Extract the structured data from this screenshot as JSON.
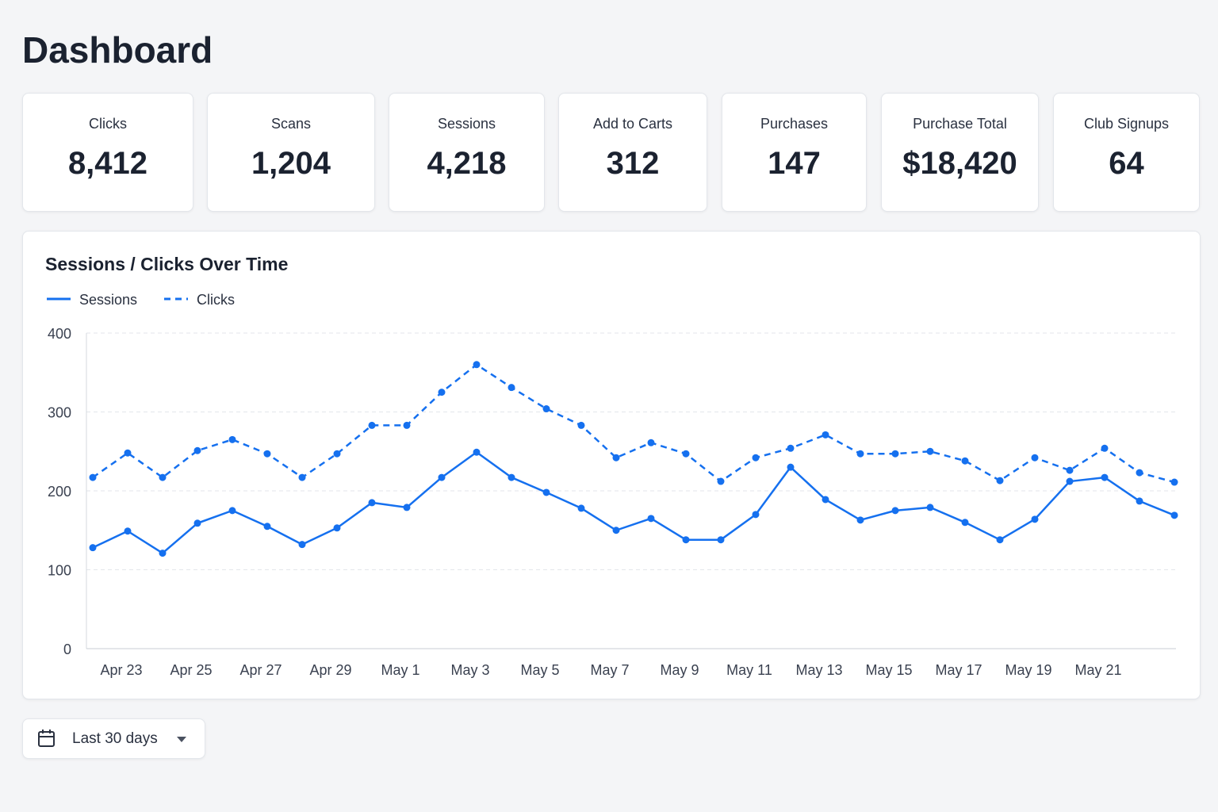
{
  "header": {
    "title": "Dashboard"
  },
  "stats": [
    {
      "label": "Clicks",
      "value": "8,412"
    },
    {
      "label": "Scans",
      "value": "1,204"
    },
    {
      "label": "Sessions",
      "value": "4,218"
    },
    {
      "label": "Add to Carts",
      "value": "312"
    },
    {
      "label": "Purchases",
      "value": "147"
    },
    {
      "label": "Purchase Total",
      "value": "$18,420"
    },
    {
      "label": "Club Signups",
      "value": "64"
    }
  ],
  "chart_data": {
    "type": "line",
    "title": "Sessions / Clicks Over Time",
    "categories": [
      null,
      "Apr 23",
      null,
      "Apr 25",
      null,
      "Apr 27",
      null,
      "Apr 29",
      null,
      "May 1",
      null,
      "May 3",
      null,
      "May 5",
      null,
      "May 7",
      null,
      "May 9",
      null,
      "May 11",
      null,
      "May 13",
      null,
      "May 15",
      null,
      "May 17",
      null,
      "May 19",
      null,
      "May 21",
      null,
      null
    ],
    "series": [
      {
        "name": "Sessions",
        "color": "#1570ef",
        "style": "solid",
        "values": [
          128,
          149,
          121,
          159,
          175,
          155,
          132,
          153,
          185,
          179,
          217,
          249,
          217,
          198,
          178,
          150,
          165,
          138,
          138,
          170,
          230,
          189,
          163,
          175,
          179,
          160,
          138,
          164,
          212,
          217,
          187,
          169
        ]
      },
      {
        "name": "Clicks",
        "color": "#1570ef",
        "style": "dashed",
        "values": [
          217,
          248,
          217,
          251,
          265,
          247,
          217,
          247,
          283,
          283,
          325,
          360,
          331,
          304,
          283,
          242,
          261,
          247,
          212,
          242,
          254,
          271,
          247,
          247,
          250,
          238,
          213,
          242,
          226,
          254,
          223,
          211
        ]
      }
    ],
    "ylim": [
      0,
      400
    ],
    "yticks": [
      0,
      100,
      200,
      300,
      400
    ],
    "grid": true,
    "legend": "top-left"
  },
  "filter": {
    "label": "Last 30 days"
  }
}
